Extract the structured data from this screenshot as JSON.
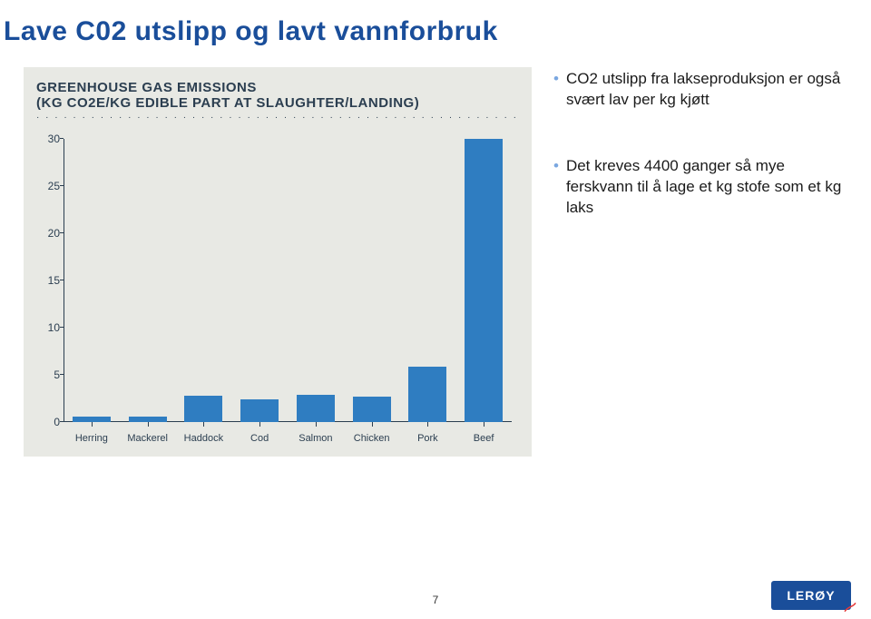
{
  "title": "Lave C02 utslipp og lavt vannforbruk",
  "chart": {
    "type": "bar",
    "title_l1": "GREENHOUSE GAS EMISSIONS",
    "title_l2": "(KG CO2E/KG EDIBLE PART AT SLAUGHTER/LANDING)",
    "title_fontsize": 15,
    "label_fontsize": 11,
    "categories": [
      "Herring",
      "Mackerel",
      "Haddock",
      "Cod",
      "Salmon",
      "Chicken",
      "Pork",
      "Beef"
    ],
    "values": [
      0.6,
      0.6,
      2.8,
      2.4,
      2.9,
      2.7,
      5.9,
      30.0
    ],
    "bar_colors": [
      "#2f7dc1",
      "#2f7dc1",
      "#2f7dc1",
      "#2f7dc1",
      "#2f7dc1",
      "#2f7dc1",
      "#2f7dc1",
      "#2f7dc1"
    ],
    "background_color": "#e8e9e4",
    "axis_color": "#2b3e50",
    "text_color": "#2b3e50",
    "ylim": [
      0,
      30
    ],
    "ytick_step": 5,
    "yticks": [
      0,
      5,
      10,
      15,
      20,
      25,
      30
    ],
    "bar_width": 0.68,
    "grid": false
  },
  "bullets": [
    "CO2 utslipp fra lakseproduksjon er også svært lav per kg kjøtt",
    "Det kreves 4400 ganger så mye ferskvann til å lage et kg stofe som et kg laks"
  ],
  "page_number": "7",
  "logo": {
    "text": "LERØY",
    "bg": "#1a4e9a",
    "fg": "#ffffff"
  },
  "colors": {
    "title": "#1a4e9a",
    "bullet_dot": "#7aa7e0"
  }
}
